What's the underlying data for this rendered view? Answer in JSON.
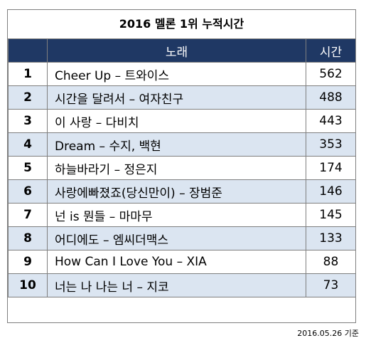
{
  "title": "2016 멜론 1위 누적시간",
  "chart_data": {
    "type": "table",
    "columns": [
      "",
      "노래",
      "시간"
    ],
    "rows": [
      {
        "rank": "1",
        "song": "Cheer Up – 트와이스",
        "time": "562"
      },
      {
        "rank": "2",
        "song": "시간을 달려서 – 여자친구",
        "time": "488"
      },
      {
        "rank": "3",
        "song": "이 사랑 – 다비치",
        "time": "443"
      },
      {
        "rank": "4",
        "song": "Dream – 수지, 백현",
        "time": "353"
      },
      {
        "rank": "5",
        "song": "하늘바라기 – 정은지",
        "time": "174"
      },
      {
        "rank": "6",
        "song": "사랑에빠졌죠(당신만이) – 장범준",
        "time": "146"
      },
      {
        "rank": "7",
        "song": "넌 is 뭔들 – 마마무",
        "time": "145"
      },
      {
        "rank": "8",
        "song": "어디에도 – 엠씨더맥스",
        "time": "133"
      },
      {
        "rank": "9",
        "song": "How Can I Love You – XIA",
        "time": "88"
      },
      {
        "rank": "10",
        "song": "너는 나 나는 너 – 지코",
        "time": "73"
      }
    ]
  },
  "footnote": "2016.05.26 기준",
  "colors": {
    "header": "#1f3864",
    "alt_row": "#dbe5f1",
    "border": "#7f7f7f"
  }
}
